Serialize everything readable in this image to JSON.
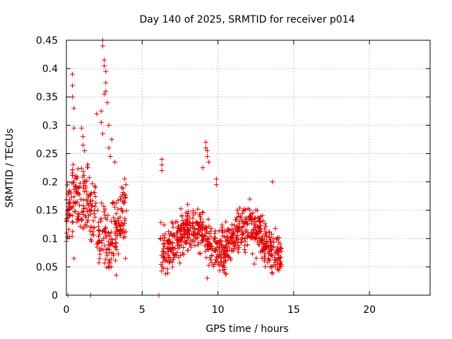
{
  "chart_data": {
    "type": "scatter",
    "title": "Day 140 of 2025, SRMTID for receiver p014",
    "xlabel": "GPS time / hours",
    "ylabel": "SRMTID / TECUs",
    "xlim": [
      0,
      24
    ],
    "ylim": [
      0,
      0.45
    ],
    "x_ticks": [
      0,
      5,
      10,
      15,
      20
    ],
    "x_tick_labels": [
      "0",
      "5",
      "10",
      "15",
      "20"
    ],
    "y_ticks": [
      0,
      0.05,
      0.1,
      0.15,
      0.2,
      0.25,
      0.3,
      0.35,
      0.4,
      0.45
    ],
    "y_tick_labels": [
      "0",
      "0.05",
      "0.1",
      "0.15",
      "0.2",
      "0.25",
      "0.3",
      "0.35",
      "0.4",
      "0.45"
    ],
    "grid": true,
    "marker": "plus",
    "marker_color": "#e00000",
    "series": [
      {
        "name": "SRMTID",
        "segments": [
          {
            "x_range": [
              0.0,
              4.0
            ],
            "y_base": 0.14,
            "y_spread": 0.09,
            "density": 320
          },
          {
            "x_range": [
              6.2,
              14.2
            ],
            "y_base": 0.1,
            "y_spread": 0.06,
            "density": 700
          }
        ],
        "highlights": [
          {
            "x": 0.4,
            "y": 0.39
          },
          {
            "x": 0.4,
            "y": 0.37
          },
          {
            "x": 0.4,
            "y": 0.35
          },
          {
            "x": 0.5,
            "y": 0.33
          },
          {
            "x": 0.5,
            "y": 0.295
          },
          {
            "x": 1.0,
            "y": 0.295
          },
          {
            "x": 1.1,
            "y": 0.28
          },
          {
            "x": 1.1,
            "y": 0.265
          },
          {
            "x": 1.2,
            "y": 0.255
          },
          {
            "x": 2.4,
            "y": 0.45
          },
          {
            "x": 2.4,
            "y": 0.44
          },
          {
            "x": 2.5,
            "y": 0.415
          },
          {
            "x": 2.5,
            "y": 0.405
          },
          {
            "x": 2.6,
            "y": 0.395
          },
          {
            "x": 2.6,
            "y": 0.375
          },
          {
            "x": 2.6,
            "y": 0.36
          },
          {
            "x": 2.5,
            "y": 0.355
          },
          {
            "x": 2.7,
            "y": 0.34
          },
          {
            "x": 2.3,
            "y": 0.325
          },
          {
            "x": 2.0,
            "y": 0.32
          },
          {
            "x": 2.3,
            "y": 0.305
          },
          {
            "x": 2.8,
            "y": 0.3
          },
          {
            "x": 2.4,
            "y": 0.285
          },
          {
            "x": 3.0,
            "y": 0.275
          },
          {
            "x": 2.8,
            "y": 0.26
          },
          {
            "x": 2.9,
            "y": 0.245
          },
          {
            "x": 3.2,
            "y": 0.235
          },
          {
            "x": 6.3,
            "y": 0.24
          },
          {
            "x": 6.3,
            "y": 0.23
          },
          {
            "x": 6.3,
            "y": 0.22
          },
          {
            "x": 9.2,
            "y": 0.27
          },
          {
            "x": 9.2,
            "y": 0.26
          },
          {
            "x": 9.3,
            "y": 0.255
          },
          {
            "x": 9.3,
            "y": 0.245
          },
          {
            "x": 9.4,
            "y": 0.235
          },
          {
            "x": 9.0,
            "y": 0.225
          },
          {
            "x": 9.9,
            "y": 0.205
          },
          {
            "x": 9.9,
            "y": 0.195
          },
          {
            "x": 13.6,
            "y": 0.2
          },
          {
            "x": 12.5,
            "y": 0.15
          },
          {
            "x": 12.3,
            "y": 0.145
          },
          {
            "x": 0.1,
            "y": 0.0
          },
          {
            "x": 1.6,
            "y": 0.0
          },
          {
            "x": 6.1,
            "y": 0.0
          },
          {
            "x": 9.3,
            "y": 0.03
          },
          {
            "x": 7.0,
            "y": 0.05
          },
          {
            "x": 13.8,
            "y": 0.05
          },
          {
            "x": 12.4,
            "y": 0.055
          },
          {
            "x": 0.5,
            "y": 0.065
          },
          {
            "x": 3.9,
            "y": 0.065
          },
          {
            "x": 2.7,
            "y": 0.07
          },
          {
            "x": 0.0,
            "y": 0.095
          }
        ]
      }
    ]
  }
}
